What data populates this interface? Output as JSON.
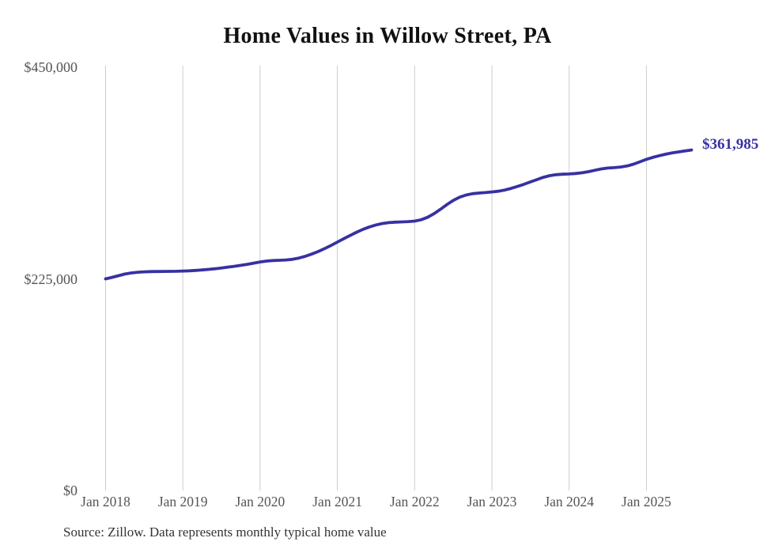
{
  "chart_data": {
    "type": "line",
    "title": "Home Values in Willow Street, PA",
    "xlabel": "",
    "ylabel": "",
    "ylim": [
      0,
      450000
    ],
    "grid": "vertical-only",
    "x_interval": "monthly",
    "x_start": "Jan 2018",
    "x_end": "Aug 2025",
    "x_ticks": [
      "Jan 2018",
      "Jan 2019",
      "Jan 2020",
      "Jan 2021",
      "Jan 2022",
      "Jan 2023",
      "Jan 2024",
      "Jan 2025"
    ],
    "y_ticks": [
      {
        "label": "$0",
        "value": 0
      },
      {
        "label": "$225,000",
        "value": 225000
      },
      {
        "label": "$450,000",
        "value": 450000
      }
    ],
    "end_label": "$361,985",
    "latest_value": 361985,
    "line_color": "#3731a2",
    "series": [
      {
        "name": "Typical home value",
        "values": [
          225000,
          226600,
          228400,
          230100,
          231300,
          232100,
          232500,
          232700,
          232800,
          232900,
          233000,
          233100,
          233300,
          233600,
          234000,
          234500,
          235100,
          235800,
          236600,
          237500,
          238400,
          239400,
          240500,
          241700,
          243000,
          243900,
          244500,
          244800,
          245100,
          245800,
          247100,
          249000,
          251300,
          254000,
          257100,
          260500,
          264100,
          267700,
          271200,
          274600,
          277700,
          280300,
          282400,
          283900,
          284800,
          285300,
          285600,
          285900,
          286400,
          287800,
          290400,
          294200,
          298900,
          303900,
          308400,
          311900,
          314200,
          315600,
          316300,
          316800,
          317400,
          318200,
          319500,
          321200,
          323300,
          325600,
          328100,
          330600,
          333000,
          334800,
          335800,
          336300,
          336500,
          337000,
          337800,
          339000,
          340500,
          341900,
          342800,
          343300,
          343900,
          345000,
          347000,
          349500,
          352100,
          354200,
          356000,
          357600,
          358900,
          360000,
          361100,
          361985
        ]
      }
    ]
  },
  "source": "Source: Zillow. Data represents monthly typical home value",
  "colors": {
    "accent": "#3731a2",
    "gridline": "#cccccc",
    "axis_label": "#555555",
    "title": "#111111",
    "source": "#333333",
    "background": "#ffffff"
  }
}
